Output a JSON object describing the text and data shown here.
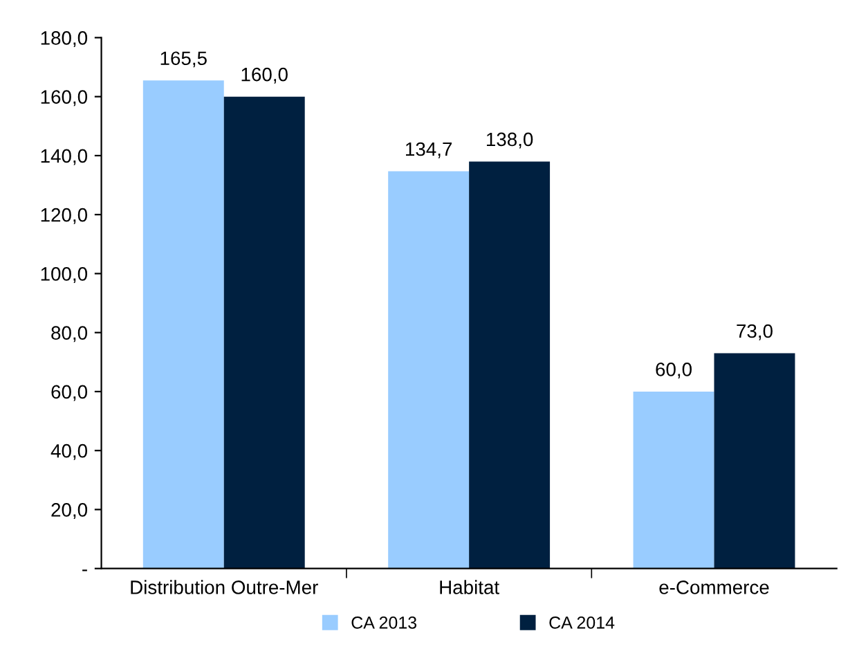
{
  "chart_data": {
    "type": "bar",
    "categories": [
      "Distribution Outre-Mer",
      "Habitat",
      "e-Commerce"
    ],
    "series": [
      {
        "name": "CA 2013",
        "color": "#99ccff",
        "values": [
          165.5,
          134.7,
          60.0
        ],
        "value_labels": [
          "165,5",
          "134,7",
          "60,0"
        ]
      },
      {
        "name": "CA 2014",
        "color": "#002040",
        "values": [
          160.0,
          138.0,
          73.0
        ],
        "value_labels": [
          "160,0",
          "138,0",
          "73,0"
        ]
      }
    ],
    "ylim": [
      0,
      180
    ],
    "yticks": [
      {
        "value": 0,
        "label": "-"
      },
      {
        "value": 20,
        "label": "20,0"
      },
      {
        "value": 40,
        "label": "40,0"
      },
      {
        "value": 60,
        "label": "60,0"
      },
      {
        "value": 80,
        "label": "80,0"
      },
      {
        "value": 100,
        "label": "100,0"
      },
      {
        "value": 120,
        "label": "120,0"
      },
      {
        "value": 140,
        "label": "140,0"
      },
      {
        "value": 160,
        "label": "160,0"
      },
      {
        "value": 180,
        "label": "180,0"
      }
    ],
    "grid": false,
    "legend": "bottom"
  }
}
